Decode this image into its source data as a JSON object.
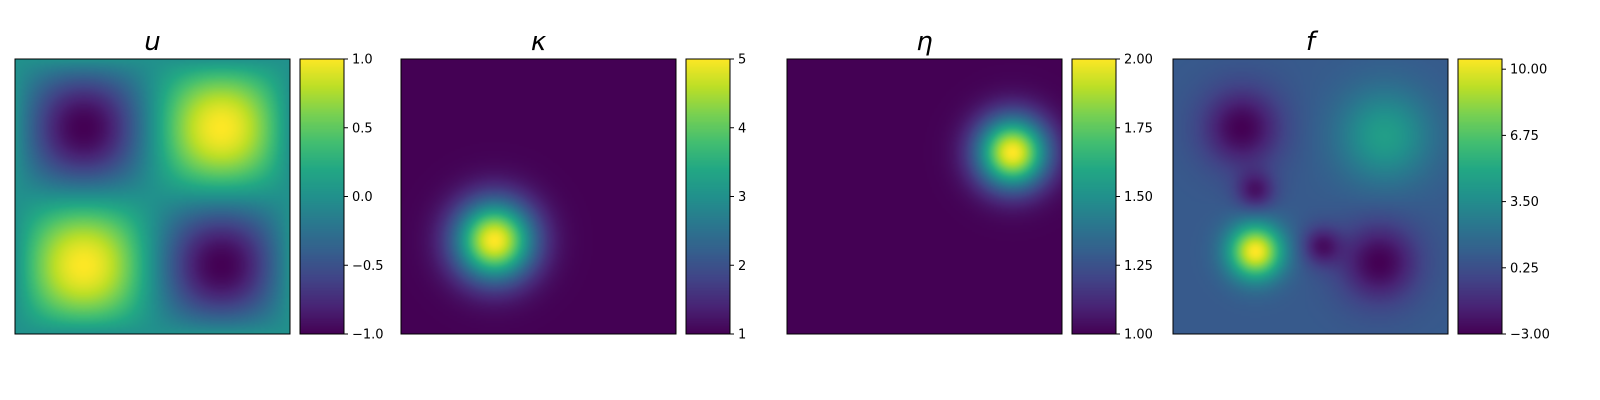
{
  "chart_data": [
    {
      "type": "heatmap",
      "title": "u",
      "xlabel": "",
      "ylabel": "",
      "colormap": "viridis",
      "grid": false,
      "field": "sin(2πx)·sin(2πy) on the unit square; peaks +1 at (0.75,0.75) and (0.25,0.25), troughs −1 at (0.25,0.75) and (0.75,0.25)",
      "clim": [
        -1.0,
        1.0
      ],
      "colorbar_ticks": [
        -1.0,
        -0.5,
        0.0,
        0.5,
        1.0
      ],
      "colorbar_tick_labels": [
        "−1.0",
        "−0.5",
        "0.0",
        "0.5",
        "1.0"
      ]
    },
    {
      "type": "heatmap",
      "title": "κ",
      "xlabel": "",
      "ylabel": "",
      "colormap": "viridis",
      "grid": false,
      "field": "1 + 4·exp(−r²/2σ²) Gaussian bump centred at (0.34, 0.34)",
      "clim": [
        1,
        5
      ],
      "colorbar_ticks": [
        1,
        2,
        3,
        4,
        5
      ],
      "colorbar_tick_labels": [
        "1",
        "2",
        "3",
        "4",
        "5"
      ]
    },
    {
      "type": "heatmap",
      "title": "η",
      "xlabel": "",
      "ylabel": "",
      "colormap": "viridis",
      "grid": false,
      "field": "1 + exp(−r²/2σ²) Gaussian bump centred at (0.82, 0.66)",
      "clim": [
        1.0,
        2.0
      ],
      "colorbar_ticks": [
        1.0,
        1.25,
        1.5,
        1.75,
        2.0
      ],
      "colorbar_tick_labels": [
        "1.00",
        "1.25",
        "1.50",
        "1.75",
        "2.00"
      ]
    },
    {
      "type": "heatmap",
      "title": "f",
      "xlabel": "",
      "ylabel": "",
      "colormap": "viridis",
      "grid": false,
      "field": "background ≈ 0.8; strong peak ≈ 10.5 at (0.3, 0.3); moderate peak ≈ 4.5 at (0.77, 0.72); minima ≈ −3 at (0.25, 0.75), (0.3, 0.52), (0.54, 0.32), (0.75, 0.26)",
      "clim": [
        -3.0,
        10.5
      ],
      "colorbar_ticks": [
        -3.0,
        0.25,
        3.5,
        6.75,
        10.0
      ],
      "colorbar_tick_labels": [
        "−3.00",
        "0.25",
        "3.50",
        "6.75",
        "10.00"
      ]
    }
  ]
}
